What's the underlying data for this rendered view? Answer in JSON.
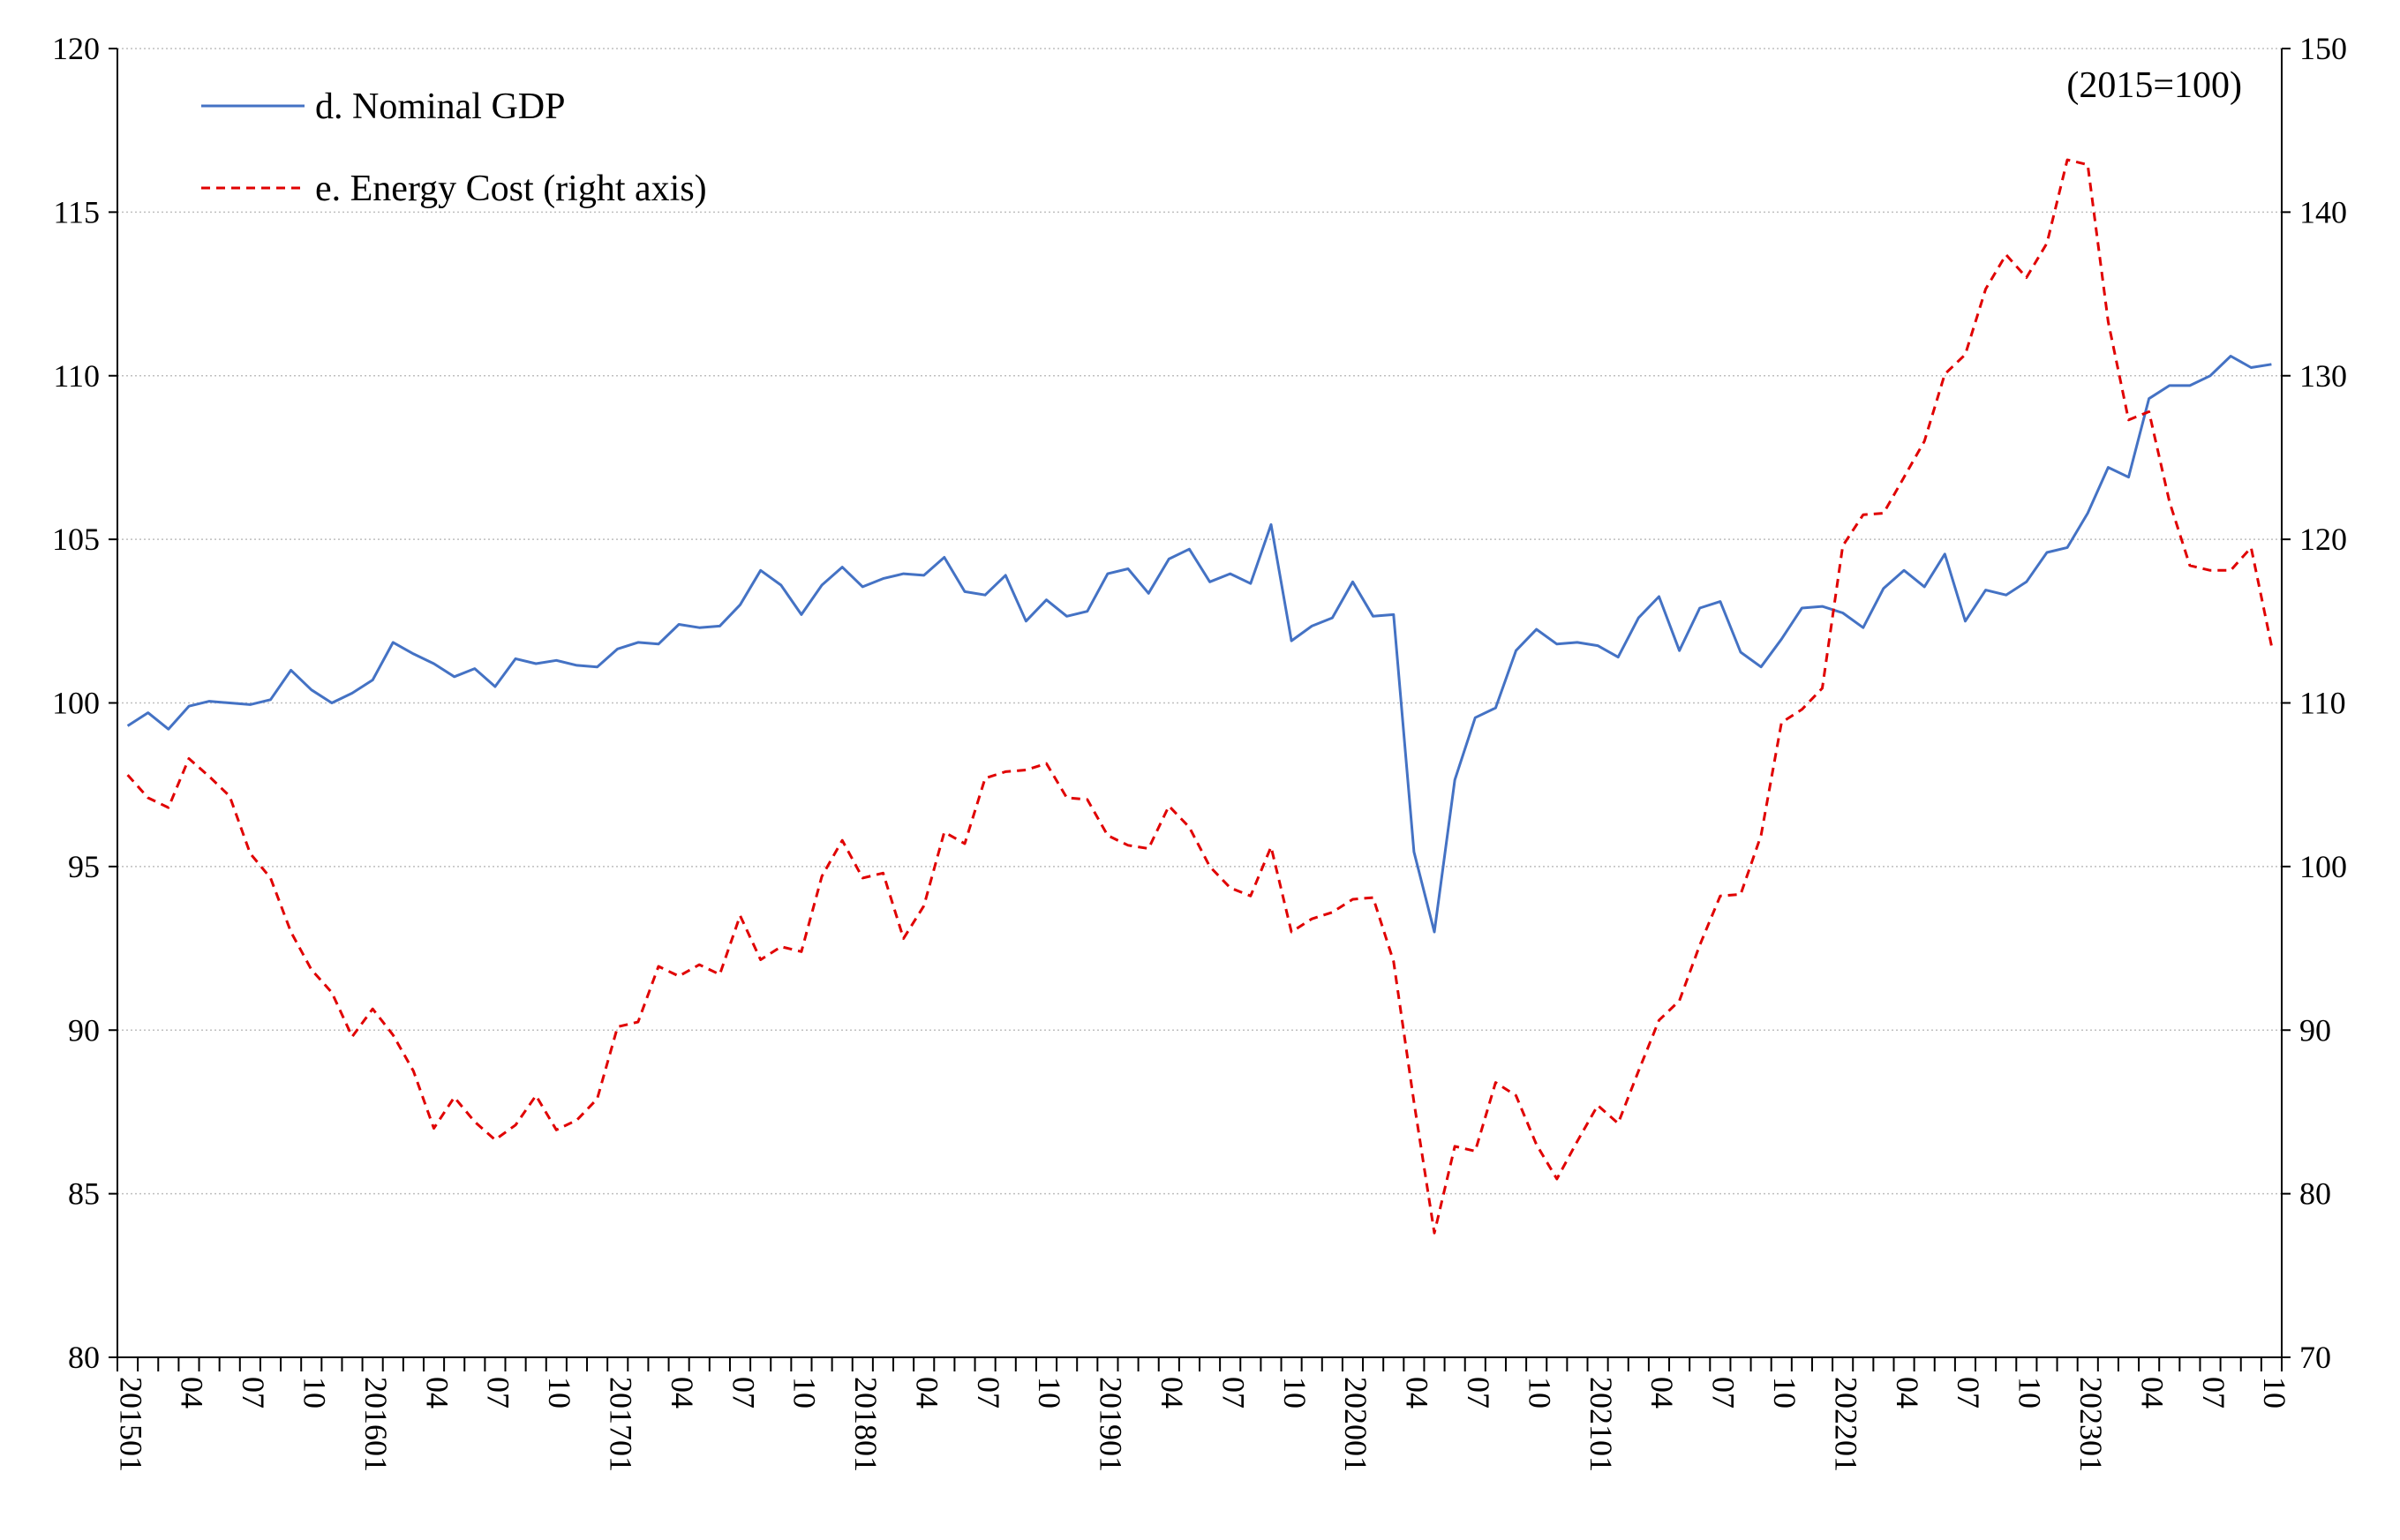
{
  "chart_data": {
    "type": "line",
    "units_note": "(2015=100)",
    "left_axis": {
      "ylim": [
        80,
        120
      ],
      "ticks": [
        "80",
        "85",
        "90",
        "95",
        "100",
        "105",
        "110",
        "115",
        "120"
      ]
    },
    "right_axis": {
      "ylim": [
        70,
        150
      ],
      "ticks": [
        "70",
        "80",
        "90",
        "100",
        "110",
        "120",
        "130",
        "140",
        "150"
      ]
    },
    "x_labels": [
      "201501",
      "04",
      "07",
      "10",
      "201601",
      "04",
      "07",
      "10",
      "201701",
      "04",
      "07",
      "10",
      "201801",
      "04",
      "07",
      "10",
      "201901",
      "04",
      "07",
      "10",
      "202001",
      "04",
      "07",
      "10",
      "202101",
      "04",
      "07",
      "10",
      "202201",
      "04",
      "07",
      "10",
      "202301",
      "04",
      "07",
      "10"
    ],
    "series": [
      {
        "name": "d. Nominal GDP",
        "axis": "left",
        "color": "#4472c4",
        "style": "solid",
        "values": [
          99.3,
          99.7,
          99.2,
          99.9,
          100.05,
          100.0,
          99.95,
          100.1,
          101.0,
          100.4,
          100.0,
          100.3,
          100.7,
          101.85,
          101.5,
          101.2,
          100.8,
          101.05,
          100.5,
          101.35,
          101.2,
          101.3,
          101.15,
          101.1,
          101.65,
          101.85,
          101.8,
          102.4,
          102.3,
          102.35,
          103.0,
          104.05,
          103.6,
          102.7,
          103.6,
          104.15,
          103.55,
          103.8,
          103.95,
          103.9,
          104.45,
          103.4,
          103.3,
          103.9,
          102.5,
          103.15,
          102.65,
          102.8,
          103.95,
          104.1,
          103.35,
          104.4,
          104.7,
          103.7,
          103.95,
          103.65,
          105.45,
          101.9,
          102.35,
          102.6,
          103.7,
          102.65,
          102.7,
          95.45,
          93.0,
          97.65,
          99.55,
          99.85,
          101.6,
          102.25,
          101.8,
          101.85,
          101.75,
          101.4,
          102.6,
          103.25,
          101.6,
          102.9,
          103.1,
          101.55,
          101.1,
          101.95,
          102.9,
          102.95,
          102.75,
          102.3,
          103.5,
          104.05,
          103.55,
          104.55,
          102.5,
          103.45,
          103.3,
          103.7,
          104.6,
          104.75,
          105.8,
          107.2,
          106.9,
          109.3,
          109.7,
          109.7,
          110.0,
          110.6,
          110.25,
          110.35
        ]
      },
      {
        "name": "e. Energy Cost (right axis)",
        "axis": "right",
        "color": "#e00000",
        "style": "dashed",
        "values": [
          105.6,
          104.2,
          103.6,
          106.6,
          105.5,
          104.3,
          100.8,
          99.3,
          96.0,
          93.7,
          92.3,
          89.6,
          91.3,
          89.7,
          87.5,
          84.0,
          85.9,
          84.4,
          83.3,
          84.2,
          86.0,
          83.9,
          84.5,
          85.8,
          90.2,
          90.5,
          93.9,
          93.3,
          94.0,
          93.4,
          97.0,
          94.3,
          95.1,
          94.8,
          99.4,
          101.6,
          99.3,
          99.6,
          95.6,
          97.6,
          102.1,
          101.4,
          105.4,
          105.8,
          105.9,
          106.3,
          104.2,
          104.1,
          101.9,
          101.3,
          101.1,
          103.7,
          102.4,
          100.0,
          98.7,
          98.2,
          101.2,
          96.0,
          96.8,
          97.2,
          98.0,
          98.1,
          94.2,
          85.6,
          77.6,
          82.9,
          82.6,
          86.8,
          86.0,
          83.0,
          80.9,
          83.2,
          85.4,
          84.3,
          87.5,
          90.6,
          91.8,
          95.2,
          98.2,
          98.3,
          101.9,
          108.8,
          109.6,
          110.9,
          119.6,
          121.5,
          121.6,
          123.8,
          126.0,
          130.1,
          131.3,
          135.3,
          137.4,
          136.0,
          138.1,
          143.2,
          142.9,
          133.3,
          127.3,
          127.8,
          122.3,
          118.4,
          118.1,
          118.1,
          119.5,
          113.5
        ]
      }
    ]
  }
}
